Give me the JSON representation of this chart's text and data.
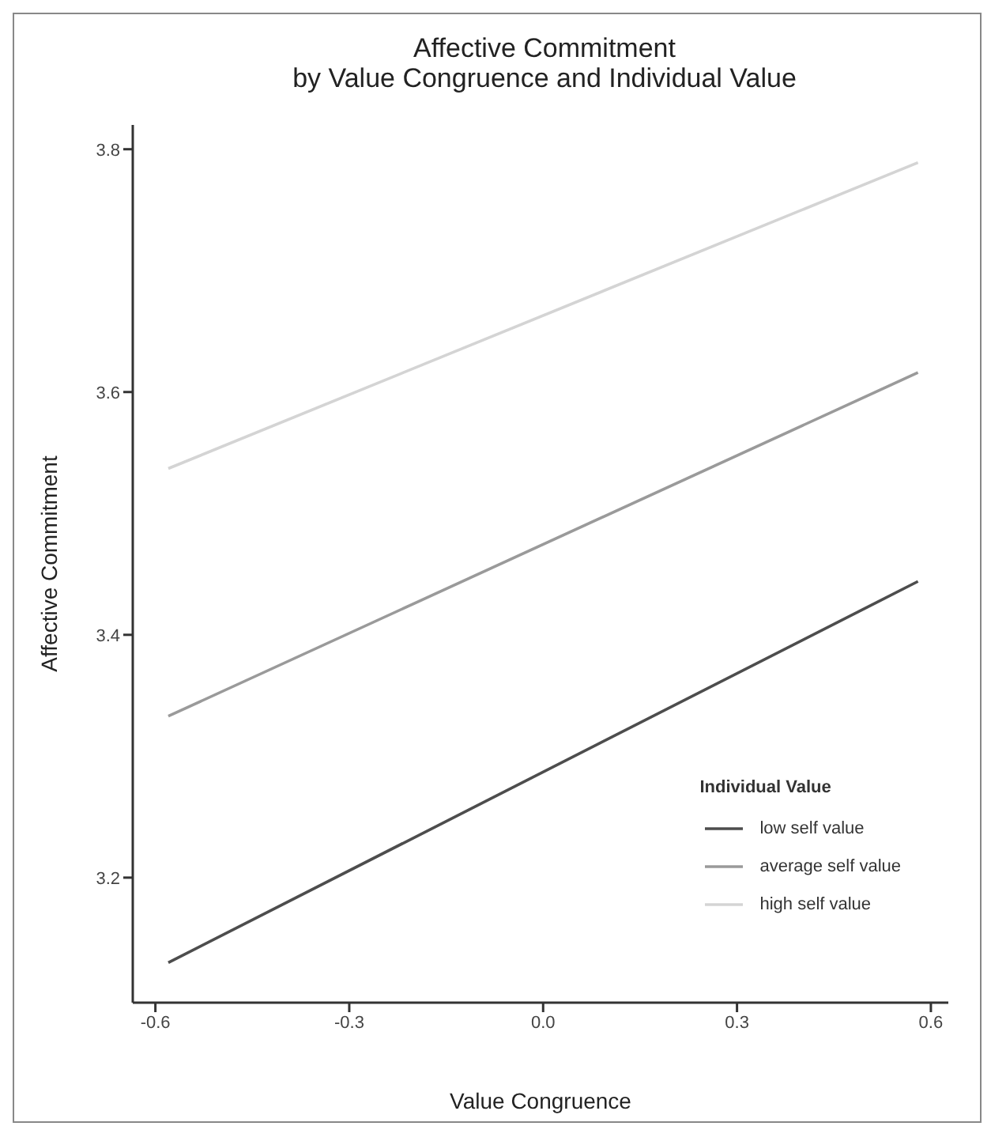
{
  "chart_data": {
    "type": "line",
    "title": "Affective Commitment\nby Value Congruence and Individual Value",
    "xlabel": "Value Congruence",
    "ylabel": "Affective Commitment",
    "legend_title": "Individual Value",
    "x": [
      -0.58,
      0.58
    ],
    "series": [
      {
        "name": "low self value",
        "color": "#4d4d4d",
        "values": [
          3.13,
          3.444
        ]
      },
      {
        "name": "average self value",
        "color": "#9a9a9a",
        "values": [
          3.333,
          3.616
        ]
      },
      {
        "name": "high self value",
        "color": "#d4d4d4",
        "values": [
          3.537,
          3.789
        ]
      }
    ],
    "xlim": [
      -0.635,
      0.627
    ],
    "xticks": [
      -0.6,
      -0.3,
      {
        "value": 0,
        "label": "0.0"
      },
      0.3,
      0.6
    ],
    "ylim": [
      3.097,
      3.82
    ],
    "yticks": [
      3.2,
      3.4,
      3.6,
      3.8
    ],
    "grid": false,
    "legend": "bottom right",
    "marker": "none",
    "line_style": "solid"
  }
}
